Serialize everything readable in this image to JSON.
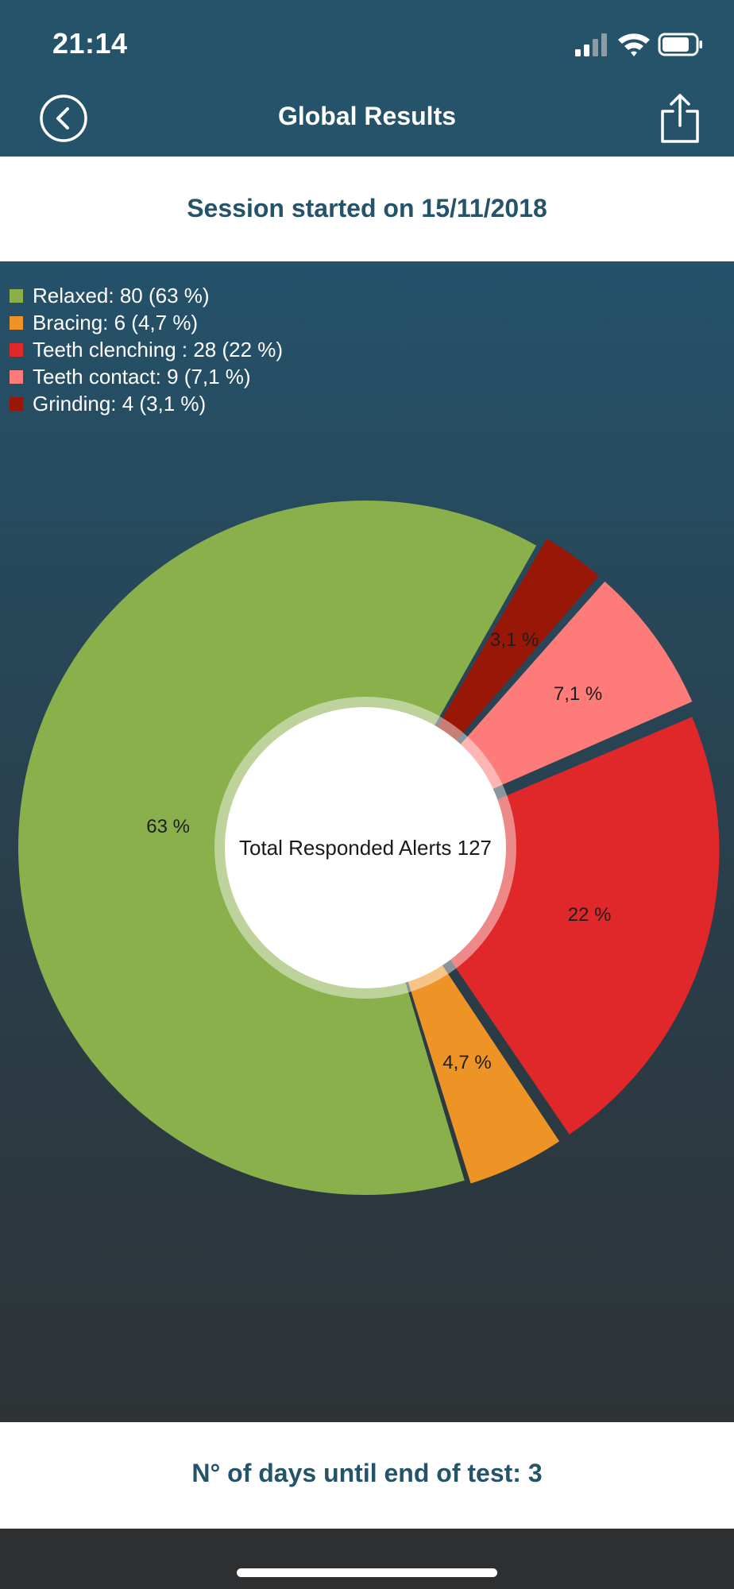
{
  "status_bar": {
    "time": "21:14"
  },
  "nav": {
    "title": "Global Results"
  },
  "session": {
    "text": "Session started on 15/11/2018"
  },
  "legend": [
    {
      "label": "Relaxed: 80 (63 %)",
      "color": "#89b04b"
    },
    {
      "label": "Bracing: 6 (4,7 %)",
      "color": "#ee9426"
    },
    {
      "label": "Teeth clenching : 28 (22 %)",
      "color": "#e0282b"
    },
    {
      "label": "Teeth contact: 9 (7,1 %)",
      "color": "#fd7b78"
    },
    {
      "label": "Grinding: 4 (3,1 %)",
      "color": "#991706"
    }
  ],
  "chart_data": {
    "type": "pie",
    "center_label": "Total Responded Alerts 127",
    "total": 127,
    "series": [
      {
        "name": "Relaxed",
        "value": 80,
        "percent_label": "63 %",
        "color": "#89b04b"
      },
      {
        "name": "Bracing",
        "value": 6,
        "percent_label": "4,7 %",
        "color": "#ee9426"
      },
      {
        "name": "Teeth clenching",
        "value": 28,
        "percent_label": "22 %",
        "color": "#e0282b"
      },
      {
        "name": "Teeth contact",
        "value": 9,
        "percent_label": "7,1 %",
        "color": "#fd7b78"
      },
      {
        "name": "Grinding",
        "value": 4,
        "percent_label": "3,1 %",
        "color": "#991706"
      }
    ]
  },
  "footer": {
    "text": "N° of days until end of test: 3"
  }
}
